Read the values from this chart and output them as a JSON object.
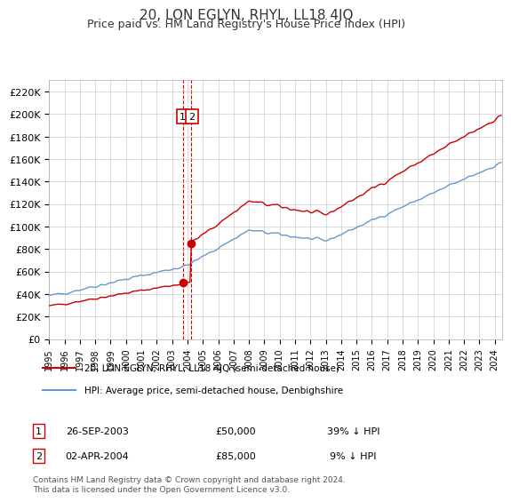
{
  "title": "20, LON EGLYN, RHYL, LL18 4JQ",
  "subtitle": "Price paid vs. HM Land Registry's House Price Index (HPI)",
  "footer": "Contains HM Land Registry data © Crown copyright and database right 2024.\nThis data is licensed under the Open Government Licence v3.0.",
  "legend_line1": "20, LON EGLYN, RHYL, LL18 4JQ (semi-detached house)",
  "legend_line2": "HPI: Average price, semi-detached house, Denbighshire",
  "sale1_label": "1",
  "sale1_date": "26-SEP-2003",
  "sale1_price": "£50,000",
  "sale1_hpi": "39% ↓ HPI",
  "sale1_x": 2003.74,
  "sale1_y": 50000,
  "sale2_label": "2",
  "sale2_date": "02-APR-2004",
  "sale2_price": "£85,000",
  "sale2_hpi": "9% ↓ HPI",
  "sale2_x": 2004.25,
  "sale2_y": 85000,
  "vline_x1": 2003.74,
  "vline_x2": 2004.25,
  "hpi_color": "#6699cc",
  "price_color": "#cc0000",
  "vline_color": "#cc0000",
  "ylim": [
    0,
    230000
  ],
  "xlim_start": 1995,
  "xlim_end": 2024.5,
  "background_color": "#ffffff",
  "grid_color": "#cccccc",
  "title_color": "#333333",
  "annotation_box_color": "#cc0000"
}
